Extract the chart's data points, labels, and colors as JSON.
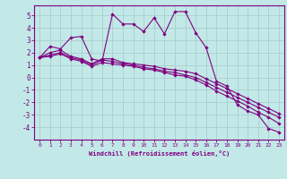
{
  "xlabel": "Windchill (Refroidissement éolien,°C)",
  "line_color": "#800080",
  "bg_color": "#c2e8e8",
  "grid_color": "#a8cece",
  "xlim": [
    -0.5,
    23.5
  ],
  "ylim": [
    -5,
    5.8
  ],
  "xticks": [
    0,
    1,
    2,
    3,
    4,
    5,
    6,
    7,
    8,
    9,
    10,
    11,
    12,
    13,
    14,
    15,
    16,
    17,
    18,
    19,
    20,
    21,
    22,
    23
  ],
  "yticks": [
    -4,
    -3,
    -2,
    -1,
    0,
    1,
    2,
    3,
    4,
    5
  ],
  "series": [
    [
      1.6,
      2.5,
      2.3,
      3.2,
      3.3,
      1.5,
      1.3,
      5.1,
      4.3,
      4.3,
      3.7,
      4.8,
      3.5,
      5.3,
      5.3,
      3.6,
      2.4,
      -0.3,
      -0.7,
      -2.2,
      -2.7,
      -3.0,
      -4.1,
      -4.4
    ],
    [
      1.6,
      2.0,
      2.2,
      1.7,
      1.5,
      1.1,
      1.5,
      1.5,
      1.2,
      1.1,
      1.0,
      0.9,
      0.7,
      0.6,
      0.5,
      0.3,
      -0.1,
      -0.5,
      -0.9,
      -1.3,
      -1.7,
      -2.1,
      -2.5,
      -2.9
    ],
    [
      1.6,
      1.8,
      2.0,
      1.6,
      1.4,
      1.0,
      1.4,
      1.3,
      1.1,
      1.0,
      0.8,
      0.7,
      0.5,
      0.4,
      0.2,
      0.0,
      -0.4,
      -0.8,
      -1.2,
      -1.6,
      -2.0,
      -2.4,
      -2.8,
      -3.2
    ],
    [
      1.6,
      1.7,
      1.9,
      1.5,
      1.3,
      0.9,
      1.2,
      1.1,
      1.0,
      0.9,
      0.7,
      0.6,
      0.4,
      0.2,
      0.1,
      -0.2,
      -0.6,
      -1.1,
      -1.5,
      -1.9,
      -2.3,
      -2.8,
      -3.2,
      -3.7
    ]
  ]
}
